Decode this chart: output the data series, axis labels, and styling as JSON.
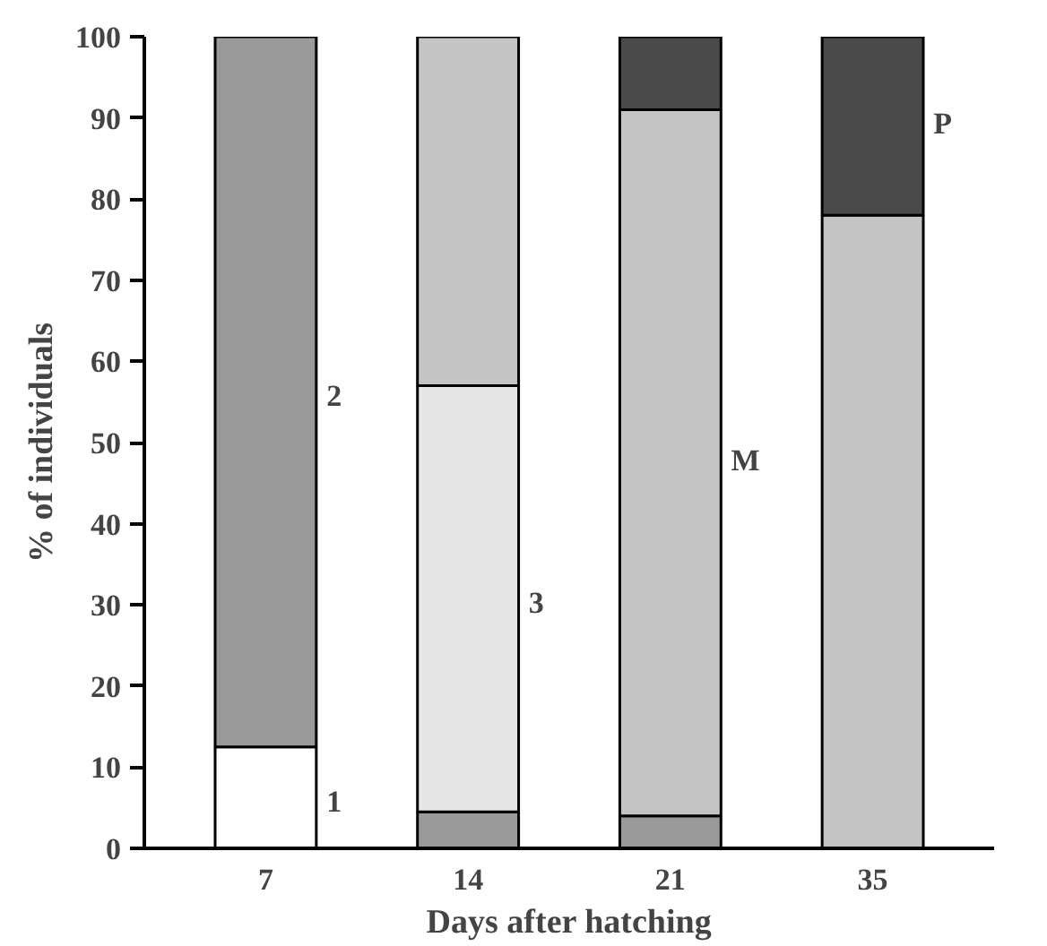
{
  "chart_data": {
    "type": "bar",
    "stacked": true,
    "xlabel": "Days after hatching",
    "ylabel": "% of individuals",
    "categories": [
      "7",
      "14",
      "21",
      "35"
    ],
    "series": [
      {
        "name": "1",
        "color": "#ffffff",
        "values": [
          12.5,
          0,
          0,
          0
        ]
      },
      {
        "name": "2",
        "color": "#9a9a9a",
        "values": [
          87.5,
          4.5,
          4,
          0
        ]
      },
      {
        "name": "3",
        "color": "#e6e6e6",
        "values": [
          0,
          52.5,
          0,
          0
        ]
      },
      {
        "name": "M",
        "color": "#c4c4c4",
        "values": [
          0,
          43,
          87,
          78
        ]
      },
      {
        "name": "P",
        "color": "#4a4a4a",
        "values": [
          0,
          0,
          9,
          22
        ]
      }
    ],
    "ylim": [
      0,
      100
    ],
    "yticks": [
      0,
      10,
      20,
      30,
      40,
      50,
      60,
      70,
      80,
      90,
      100
    ],
    "grid": false
  }
}
